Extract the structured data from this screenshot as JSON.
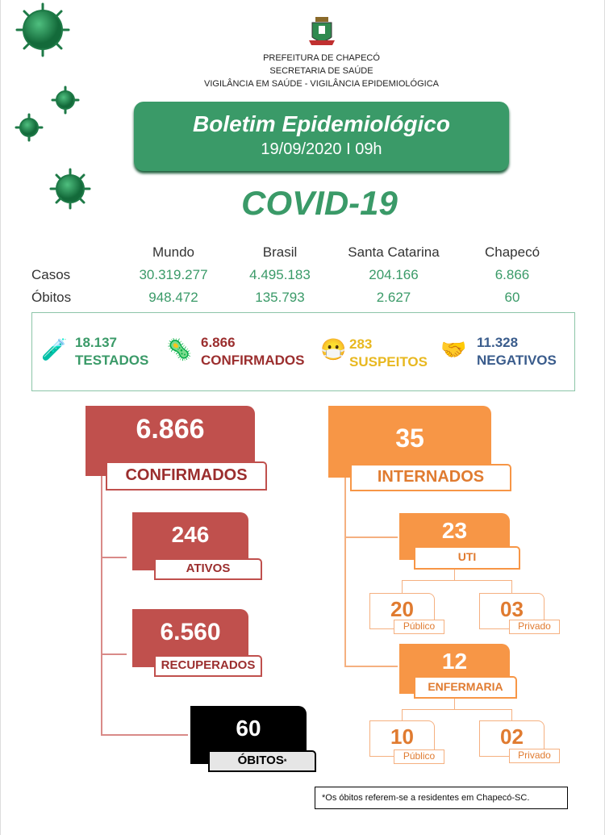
{
  "header": {
    "line1": "PREFEITURA DE CHAPECÓ",
    "line2": "SECRETARIA DE SAÚDE",
    "line3": "VIGILÂNCIA EM SAÚDE - VIGILÂNCIA EPIDEMIOLÓGICA"
  },
  "banner": {
    "title": "Boletim Epidemiológico",
    "date": "19/09/2020 I 09h"
  },
  "headline": "COVID-19",
  "table": {
    "columns": [
      "Mundo",
      "Brasil",
      "Santa Catarina",
      "Chapecó"
    ],
    "rows": [
      {
        "label": "Casos",
        "values": [
          "30.319.277",
          "4.495.183",
          "204.166",
          "6.866"
        ]
      },
      {
        "label": "Óbitos",
        "values": [
          "948.472",
          "135.793",
          "2.627",
          "60"
        ]
      }
    ]
  },
  "stats": [
    {
      "value": "18.137",
      "label": "TESTADOS",
      "color": "#3a9a68",
      "icon": "test-tube-icon"
    },
    {
      "value": "6.866",
      "label": "CONFIRMADOS",
      "color": "#9b2e2e",
      "icon": "virus-icon"
    },
    {
      "value": "283",
      "label": "SUSPEITOS",
      "color": "#e8b820",
      "icon": "masked-person-icon"
    },
    {
      "value": "11.328",
      "label": "NEGATIVOS",
      "color": "#3a5c8c",
      "icon": "handshake-icon"
    }
  ],
  "confirmed": {
    "value": "6.866",
    "label": "CONFIRMADOS",
    "ativos": {
      "value": "246",
      "label": "ATIVOS"
    },
    "recuperados": {
      "value": "6.560",
      "label": "RECUPERADOS"
    },
    "obitos": {
      "value": "60",
      "label": "ÓBITOS",
      "mark": "*"
    }
  },
  "internados": {
    "value": "35",
    "label": "INTERNADOS",
    "uti": {
      "value": "23",
      "label": "UTI",
      "publico": {
        "value": "20",
        "label": "Público"
      },
      "privado": {
        "value": "03",
        "label": "Privado"
      }
    },
    "enfermaria": {
      "value": "12",
      "label": "ENFERMARIA",
      "publico": {
        "value": "10",
        "label": "Público"
      },
      "privado": {
        "value": "02",
        "label": "Privado"
      }
    }
  },
  "colors": {
    "green": "#3a9a68",
    "red": "#c0504d",
    "orange": "#f79646"
  },
  "footnote": "*Os óbitos referem-se a residentes em Chapecó-SC."
}
